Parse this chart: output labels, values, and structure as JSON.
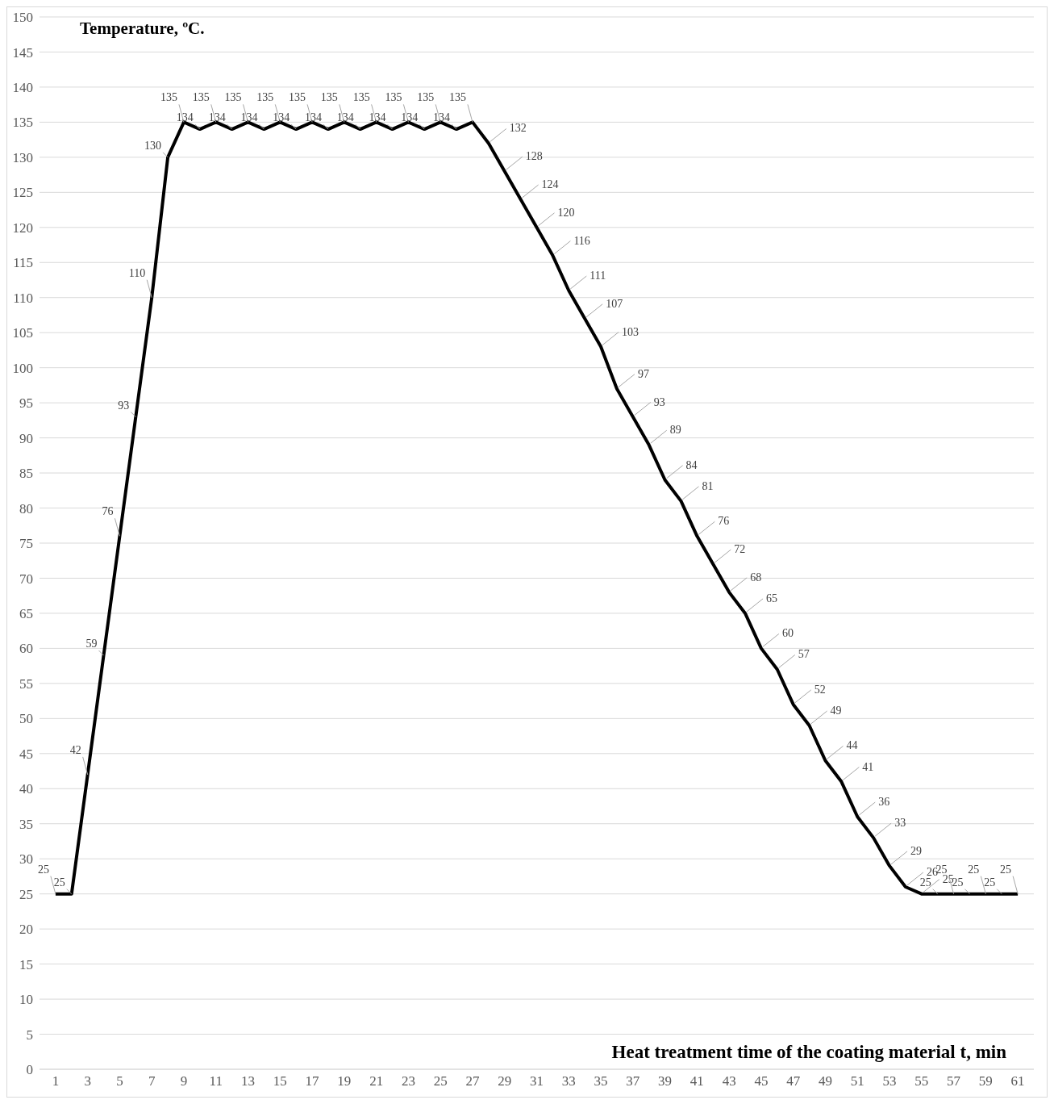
{
  "chart_data": {
    "type": "line",
    "ylabel": "Temperature, ºC.",
    "xlabel": "Heat treatment time of the coating material t, min",
    "x": [
      1,
      2,
      3,
      4,
      5,
      6,
      7,
      8,
      9,
      10,
      11,
      12,
      13,
      14,
      15,
      16,
      17,
      18,
      19,
      20,
      21,
      22,
      23,
      24,
      25,
      26,
      27,
      28,
      29,
      30,
      31,
      32,
      33,
      34,
      35,
      36,
      37,
      38,
      39,
      40,
      41,
      42,
      43,
      44,
      45,
      46,
      47,
      48,
      49,
      50,
      51,
      52,
      53,
      54,
      55,
      56,
      57,
      58,
      59,
      60,
      61
    ],
    "series": [
      {
        "color": "#000000",
        "values": [
          25,
          25,
          42,
          59,
          76,
          93,
          110,
          130,
          135,
          134,
          135,
          134,
          135,
          134,
          135,
          134,
          135,
          134,
          135,
          134,
          135,
          134,
          135,
          134,
          135,
          134,
          135,
          132,
          128,
          124,
          120,
          116,
          111,
          107,
          103,
          97,
          93,
          89,
          84,
          81,
          76,
          72,
          68,
          65,
          60,
          57,
          52,
          49,
          44,
          41,
          36,
          33,
          29,
          26,
          25,
          25,
          25,
          25,
          25,
          25,
          25
        ]
      }
    ],
    "xlim": [
      0,
      62
    ],
    "xticks": [
      1,
      3,
      5,
      7,
      9,
      11,
      13,
      15,
      17,
      19,
      21,
      23,
      25,
      27,
      29,
      31,
      33,
      35,
      37,
      39,
      41,
      43,
      45,
      47,
      49,
      51,
      53,
      55,
      57,
      59,
      61
    ],
    "ylim": [
      0,
      150
    ],
    "yticks": [
      0,
      5,
      10,
      15,
      20,
      25,
      30,
      35,
      40,
      45,
      50,
      55,
      60,
      65,
      70,
      75,
      80,
      85,
      90,
      95,
      100,
      105,
      110,
      115,
      120,
      125,
      130,
      135,
      140,
      145,
      150
    ],
    "grid": "y",
    "line_style": "solid",
    "data_labels": true
  }
}
